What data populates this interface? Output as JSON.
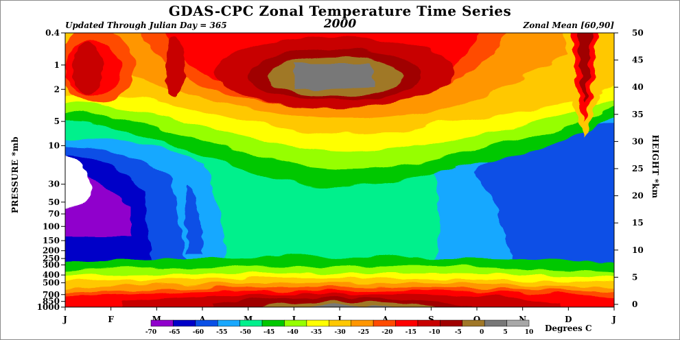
{
  "chart_data": {
    "type": "heatmap",
    "title": "GDAS-CPC Zonal Temperature Time Series",
    "subtitle_left": "Updated Through Julian Day = 365",
    "subtitle_center": "2000",
    "subtitle_right": "Zonal Mean [60,90]",
    "ylabel_left": "PRESSURE *mb",
    "ylabel_right": "HEIGHT *km",
    "x_ticks": [
      "J",
      "F",
      "M",
      "A",
      "M",
      "J",
      "J",
      "A",
      "S",
      "O",
      "N",
      "D",
      "J"
    ],
    "y_left_ticks": [
      "0.4",
      "1",
      "2",
      "5",
      "10",
      "30",
      "50",
      "70",
      "100",
      "150",
      "200",
      "250",
      "300",
      "400",
      "500",
      "700",
      "850",
      "1000"
    ],
    "y_right_ticks": [
      "50",
      "45",
      "40",
      "35",
      "30",
      "25",
      "20",
      "15",
      "10",
      "5",
      "0"
    ],
    "colorbar": {
      "label": "Degrees C",
      "levels": [
        "-70",
        "-65",
        "-60",
        "-55",
        "-50",
        "-45",
        "-40",
        "-35",
        "-30",
        "-25",
        "-20",
        "-15",
        "-10",
        "-5",
        "0",
        "5",
        "10"
      ],
      "colors": [
        "#9000cc",
        "#0000c8",
        "#0a50e6",
        "#19a8ff",
        "#00f08c",
        "#00c800",
        "#96ff00",
        "#ffff00",
        "#ffc800",
        "#ff9600",
        "#ff4b00",
        "#ff0000",
        "#c80000",
        "#a00000",
        "#a07828",
        "#787878",
        "#a8a8a8"
      ]
    }
  }
}
